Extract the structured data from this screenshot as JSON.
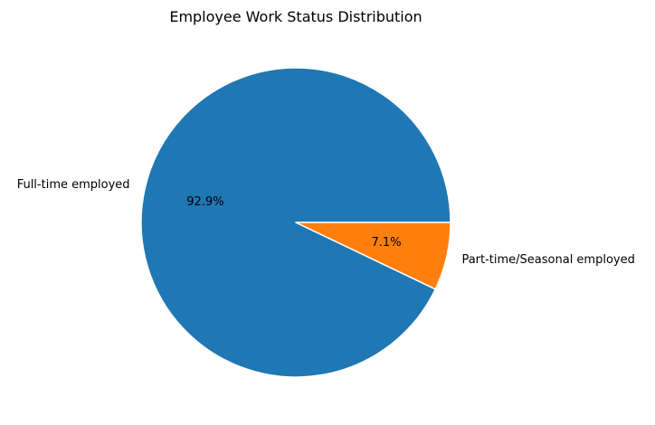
{
  "chart_data": {
    "type": "pie",
    "title": "Employee Work Status Distribution",
    "categories": [
      "Full-time employed",
      "Part-time/Seasonal employed"
    ],
    "values": [
      92.9,
      7.1
    ],
    "percent_labels": [
      "92.9%",
      "7.1%"
    ],
    "colors": [
      "#1f77b4",
      "#ff7f0e"
    ],
    "start_angle_deg": 0,
    "direction": "counterclockwise",
    "edge_color": "#ffffff",
    "legend": "none"
  }
}
